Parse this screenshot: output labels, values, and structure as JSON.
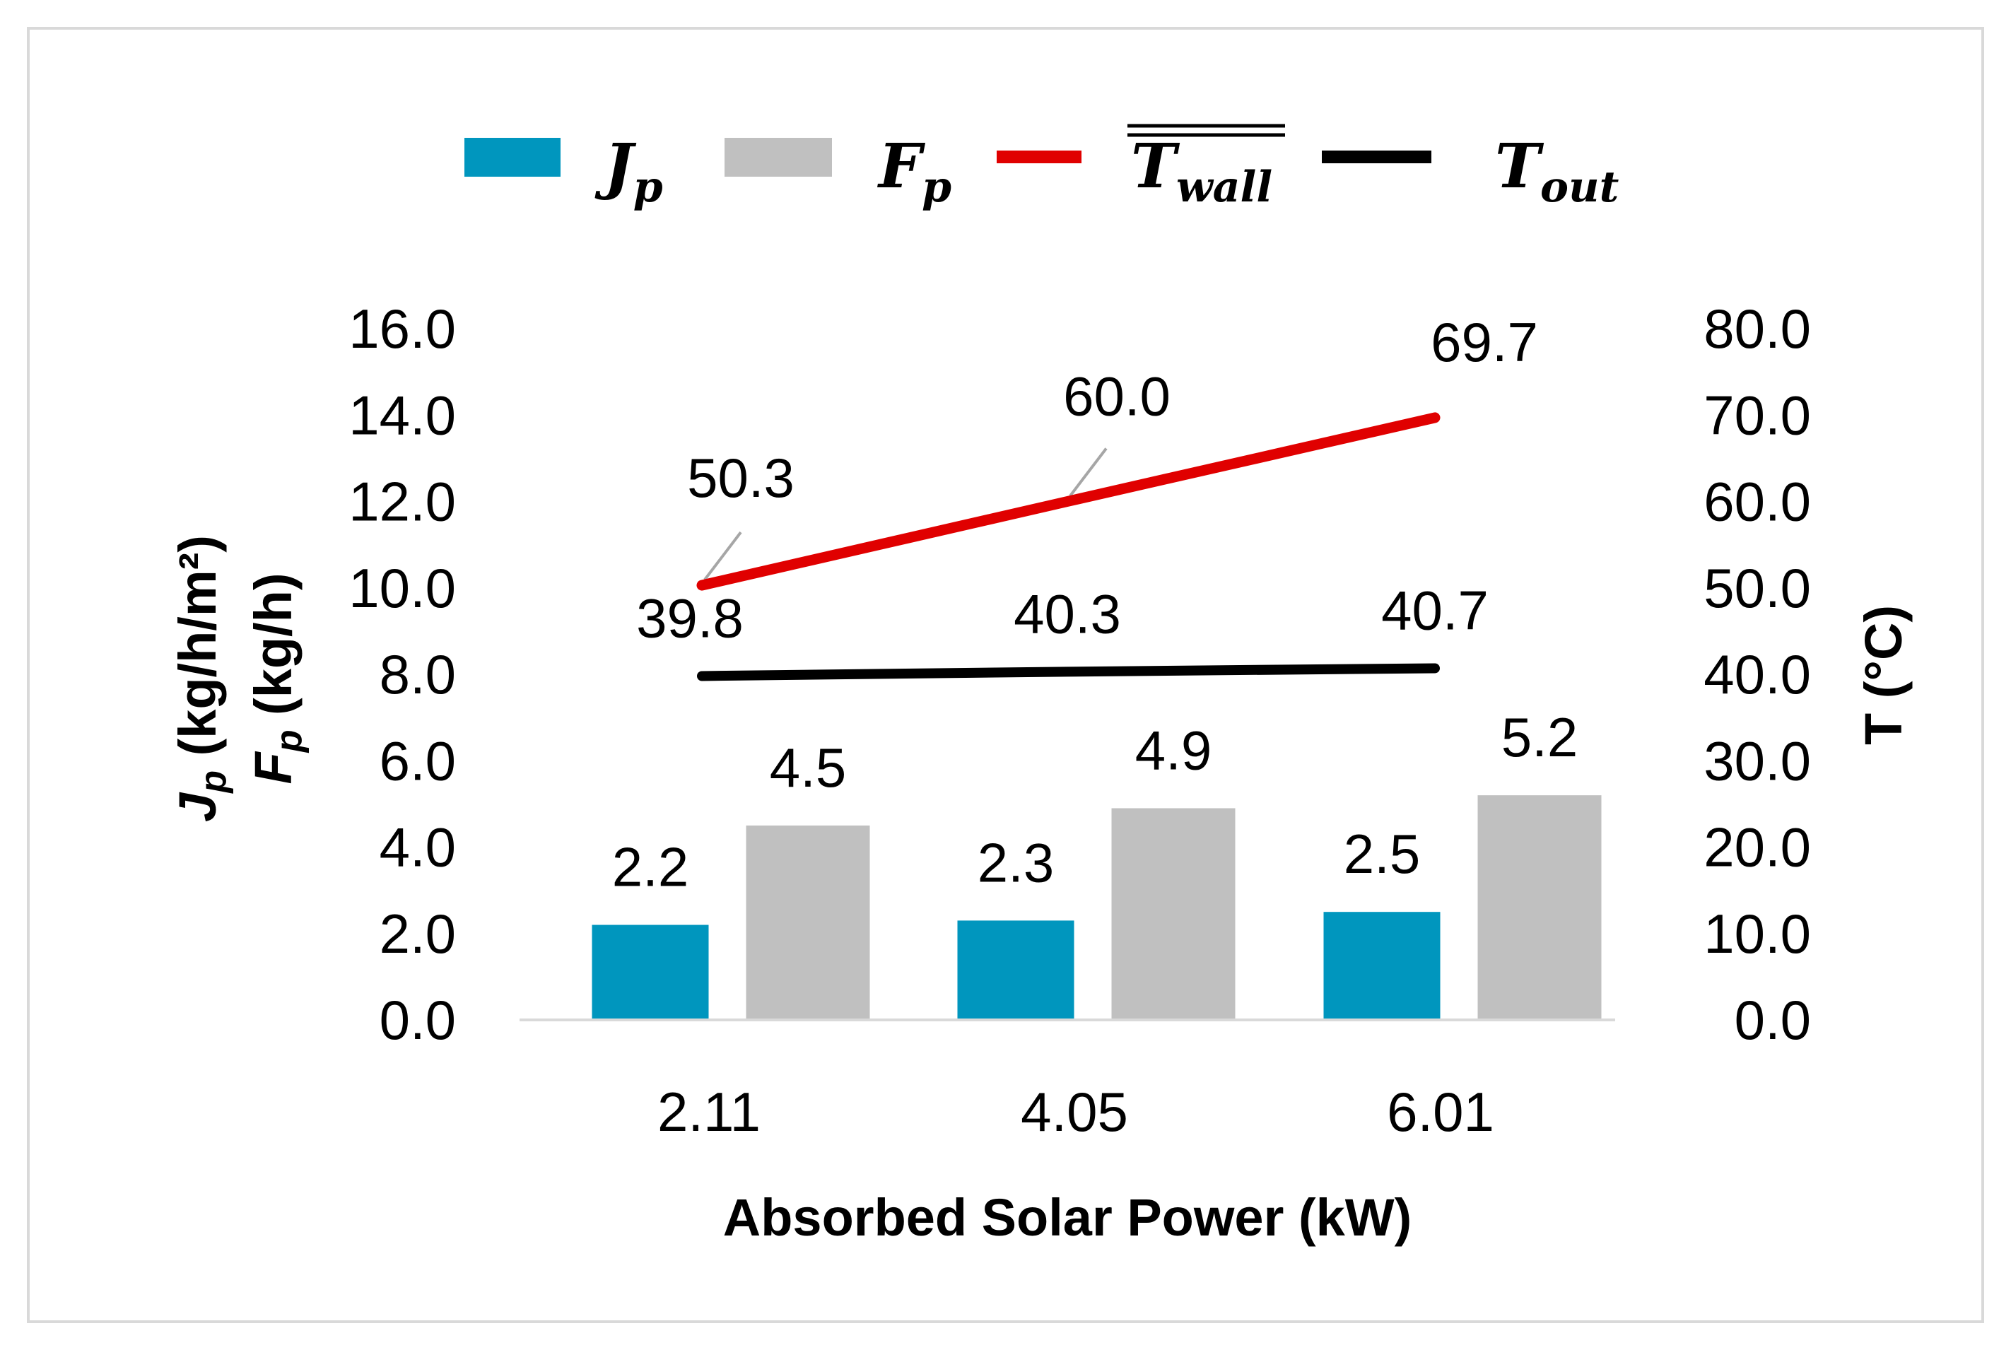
{
  "chart_data": {
    "type": "bar",
    "categories": [
      "2.11",
      "4.05",
      "6.01"
    ],
    "xlabel": "Absorbed Solar Power (kW)",
    "y_left": {
      "label_line1": "J",
      "label_line1_sub": "p",
      "label_line1_unit": " (kg/h/m²)",
      "label_line2": "F",
      "label_line2_sub": "p",
      "label_line2_unit": " (kg/h)",
      "range": [
        0,
        16
      ],
      "ticks": [
        "0.0",
        "2.0",
        "4.0",
        "6.0",
        "8.0",
        "10.0",
        "12.0",
        "14.0",
        "16.0"
      ]
    },
    "y_right": {
      "label": "T (°C)",
      "range": [
        0,
        80
      ],
      "ticks": [
        "0.0",
        "10.0",
        "20.0",
        "30.0",
        "40.0",
        "50.0",
        "60.0",
        "70.0",
        "80.0"
      ]
    },
    "bar_series": [
      {
        "name": "Jp",
        "legend_main": "J",
        "legend_sub": "p",
        "axis": "left",
        "color": "#0096be",
        "values": [
          2.2,
          2.3,
          2.5
        ],
        "labels": [
          "2.2",
          "2.3",
          "2.5"
        ]
      },
      {
        "name": "Fp",
        "legend_main": "F",
        "legend_sub": "p",
        "axis": "left",
        "color": "#c0c0c0",
        "values": [
          4.5,
          4.9,
          5.2
        ],
        "labels": [
          "4.5",
          "4.9",
          "5.2"
        ]
      }
    ],
    "line_series": [
      {
        "name": "Twall (mean)",
        "legend_main": "T",
        "legend_sub": "wall",
        "overline": true,
        "axis": "right",
        "color": "#e00000",
        "values": [
          50.3,
          60.0,
          69.7
        ],
        "labels": [
          "50.3",
          "60.0",
          "69.7"
        ]
      },
      {
        "name": "Tout",
        "legend_main": "T",
        "legend_sub": "out",
        "overline": false,
        "axis": "right",
        "color": "#000000",
        "values": [
          39.8,
          40.3,
          40.7
        ],
        "labels": [
          "39.8",
          "40.3",
          "40.7"
        ]
      }
    ],
    "legend_position": "top",
    "grid": false
  }
}
